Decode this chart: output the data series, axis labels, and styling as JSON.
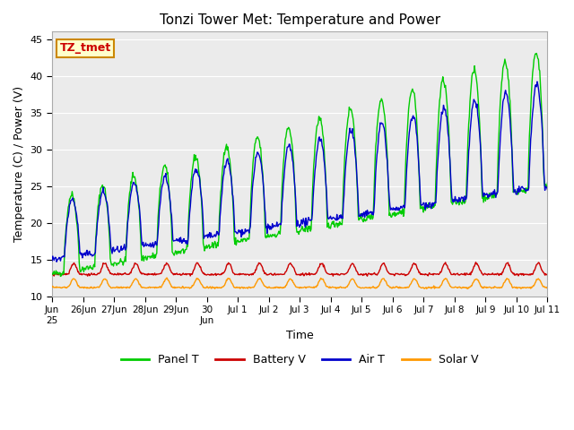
{
  "title": "Tonzi Tower Met: Temperature and Power",
  "xlabel": "Time",
  "ylabel": "Temperature (C) / Power (V)",
  "ylim": [
    10,
    46
  ],
  "yticks": [
    10,
    15,
    20,
    25,
    30,
    35,
    40,
    45
  ],
  "annotation_text": "TZ_tmet",
  "annotation_box_facecolor": "#ffffcc",
  "annotation_text_color": "#cc0000",
  "annotation_edge_color": "#cc8800",
  "plot_bg": "#ebebeb",
  "fig_bg": "#ffffff",
  "colors": {
    "Panel T": "#00cc00",
    "Battery V": "#cc0000",
    "Air T": "#0000cc",
    "Solar V": "#ff9900"
  },
  "legend_labels": [
    "Panel T",
    "Battery V",
    "Air T",
    "Solar V"
  ],
  "xtick_positions": [
    0,
    1,
    2,
    3,
    4,
    5,
    6,
    7,
    8,
    9,
    10,
    11,
    12,
    13,
    14,
    15,
    16
  ],
  "xtick_labels": [
    "Jun\n25",
    "26Jun",
    "27Jun",
    "28Jun",
    "29Jun",
    "30\nJun",
    "Jul 1",
    "Jul 2",
    "Jul 3",
    "Jul 4",
    "Jul 5",
    "Jul 6",
    "Jul 7",
    "Jul 8",
    "Jul 9",
    "Jul 10",
    "Jul 11"
  ],
  "num_days": 16
}
